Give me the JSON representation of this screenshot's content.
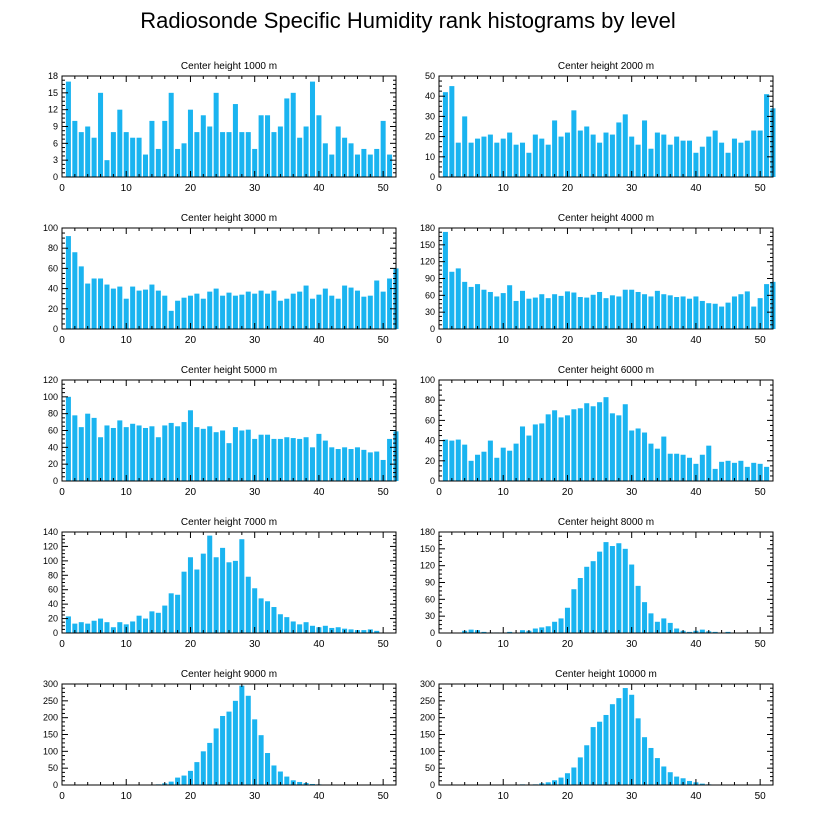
{
  "title": "Radiosonde Specific Humidity rank histograms by level",
  "colors": {
    "bar": "#1ab4f0",
    "axis": "#000000",
    "background": "#ffffff"
  },
  "chart_data": [
    {
      "type": "bar",
      "title": "Center height 1000 m",
      "ylim": [
        0,
        18
      ],
      "yticks": [
        0,
        3,
        6,
        9,
        12,
        15,
        18
      ],
      "xticks": [
        0,
        10,
        20,
        30,
        40,
        50
      ],
      "values": [
        17,
        10,
        8,
        9,
        7,
        15,
        3,
        8,
        12,
        8,
        7,
        7,
        4,
        10,
        5,
        10,
        15,
        5,
        6,
        12,
        8,
        11,
        9,
        15,
        8,
        8,
        13,
        8,
        8,
        5,
        11,
        11,
        8,
        9,
        14,
        15,
        7,
        9,
        17,
        11,
        6,
        4,
        9,
        7,
        6,
        4,
        5,
        4,
        5,
        10,
        4
      ]
    },
    {
      "type": "bar",
      "title": "Center height 2000 m",
      "ylim": [
        0,
        50
      ],
      "yticks": [
        0,
        10,
        20,
        30,
        40,
        50
      ],
      "xticks": [
        0,
        10,
        20,
        30,
        40,
        50
      ],
      "values": [
        42,
        45,
        17,
        30,
        17,
        19,
        20,
        21,
        17,
        19,
        22,
        16,
        17,
        12,
        21,
        19,
        16,
        28,
        20,
        22,
        33,
        23,
        25,
        21,
        17,
        22,
        21,
        27,
        31,
        20,
        16,
        28,
        14,
        22,
        21,
        16,
        20,
        18,
        18,
        12,
        15,
        20,
        23,
        17,
        12,
        19,
        17,
        18,
        23,
        23,
        41,
        34
      ]
    },
    {
      "type": "bar",
      "title": "Center height 3000 m",
      "ylim": [
        0,
        100
      ],
      "yticks": [
        0,
        20,
        40,
        60,
        80,
        100
      ],
      "xticks": [
        0,
        10,
        20,
        30,
        40,
        50
      ],
      "values": [
        92,
        76,
        62,
        45,
        50,
        50,
        44,
        40,
        42,
        30,
        42,
        38,
        39,
        44,
        38,
        33,
        18,
        28,
        31,
        33,
        35,
        30,
        37,
        40,
        33,
        36,
        33,
        34,
        37,
        35,
        38,
        35,
        38,
        28,
        30,
        35,
        37,
        43,
        30,
        34,
        40,
        33,
        30,
        43,
        41,
        38,
        32,
        33,
        48,
        37,
        50,
        60
      ]
    },
    {
      "type": "bar",
      "title": "Center height 4000 m",
      "ylim": [
        0,
        180
      ],
      "yticks": [
        0,
        30,
        60,
        90,
        120,
        150,
        180
      ],
      "xticks": [
        0,
        10,
        20,
        30,
        40,
        50
      ],
      "values": [
        173,
        102,
        108,
        84,
        75,
        80,
        70,
        66,
        58,
        64,
        78,
        50,
        68,
        54,
        56,
        62,
        55,
        62,
        59,
        67,
        65,
        57,
        56,
        61,
        66,
        55,
        60,
        58,
        70,
        70,
        66,
        62,
        58,
        68,
        62,
        60,
        57,
        58,
        54,
        58,
        50,
        46,
        45,
        40,
        47,
        58,
        62,
        67,
        40,
        55,
        80,
        84
      ]
    },
    {
      "type": "bar",
      "title": "Center height 5000 m",
      "ylim": [
        0,
        120
      ],
      "yticks": [
        0,
        20,
        40,
        60,
        80,
        100,
        120
      ],
      "xticks": [
        0,
        10,
        20,
        30,
        40,
        50
      ],
      "values": [
        100,
        78,
        64,
        80,
        75,
        52,
        66,
        63,
        72,
        64,
        68,
        66,
        63,
        65,
        52,
        66,
        69,
        65,
        70,
        84,
        64,
        62,
        65,
        58,
        60,
        45,
        64,
        60,
        61,
        50,
        55,
        55,
        50,
        50,
        52,
        51,
        50,
        52,
        40,
        56,
        48,
        40,
        38,
        40,
        38,
        40,
        37,
        34,
        35,
        25,
        50,
        59
      ]
    },
    {
      "type": "bar",
      "title": "Center height 6000 m",
      "ylim": [
        0,
        100
      ],
      "yticks": [
        0,
        20,
        40,
        60,
        80,
        100
      ],
      "xticks": [
        0,
        10,
        20,
        30,
        40,
        50
      ],
      "values": [
        41,
        40,
        41,
        36,
        20,
        26,
        29,
        40,
        23,
        33,
        30,
        37,
        54,
        45,
        56,
        57,
        66,
        70,
        63,
        65,
        71,
        72,
        77,
        74,
        78,
        83,
        67,
        65,
        76,
        50,
        52,
        48,
        37,
        32,
        44,
        27,
        27,
        26,
        23,
        17,
        26,
        35,
        12,
        19,
        20,
        18,
        20,
        14,
        18,
        17,
        14
      ]
    },
    {
      "type": "bar",
      "title": "Center height 7000 m",
      "ylim": [
        0,
        140
      ],
      "yticks": [
        0,
        20,
        40,
        60,
        80,
        100,
        120,
        140
      ],
      "xticks": [
        0,
        10,
        20,
        30,
        40,
        50
      ],
      "values": [
        23,
        13,
        15,
        13,
        17,
        20,
        15,
        8,
        15,
        12,
        16,
        24,
        20,
        30,
        28,
        38,
        55,
        53,
        85,
        105,
        88,
        110,
        135,
        105,
        118,
        98,
        100,
        130,
        78,
        62,
        48,
        44,
        36,
        26,
        22,
        16,
        12,
        15,
        10,
        8,
        10,
        7,
        8,
        6,
        5,
        4,
        4,
        5,
        3
      ]
    },
    {
      "type": "bar",
      "title": "Center height 8000 m",
      "ylim": [
        0,
        180
      ],
      "yticks": [
        0,
        30,
        60,
        90,
        120,
        150,
        180
      ],
      "xticks": [
        0,
        10,
        20,
        30,
        40,
        50
      ],
      "values": [
        0,
        0,
        0,
        4,
        6,
        5,
        2,
        1,
        1,
        0,
        2,
        0,
        5,
        4,
        8,
        10,
        12,
        20,
        26,
        45,
        78,
        98,
        118,
        128,
        145,
        162,
        155,
        160,
        150,
        122,
        84,
        55,
        35,
        20,
        26,
        18,
        8,
        4,
        2,
        4,
        6,
        3,
        2,
        0,
        2,
        0,
        0,
        1,
        0
      ]
    },
    {
      "type": "bar",
      "title": "Center height 9000 m",
      "ylim": [
        0,
        300
      ],
      "yticks": [
        0,
        50,
        100,
        150,
        200,
        250,
        300
      ],
      "xticks": [
        0,
        10,
        20,
        30,
        40,
        50
      ],
      "values": [
        0,
        0,
        0,
        0,
        0,
        0,
        0,
        0,
        0,
        0,
        0,
        0,
        0,
        0,
        2,
        5,
        10,
        22,
        28,
        42,
        68,
        100,
        125,
        168,
        205,
        218,
        250,
        295,
        265,
        195,
        148,
        95,
        58,
        40,
        25,
        14,
        9,
        6,
        3,
        2,
        1,
        1,
        0,
        0,
        0,
        0,
        0,
        0,
        0,
        0,
        0
      ]
    },
    {
      "type": "bar",
      "title": "Center height 10000 m",
      "ylim": [
        0,
        300
      ],
      "yticks": [
        0,
        50,
        100,
        150,
        200,
        250,
        300
      ],
      "xticks": [
        0,
        10,
        20,
        30,
        40,
        50
      ],
      "values": [
        0,
        0,
        0,
        0,
        0,
        0,
        0,
        0,
        0,
        0,
        0,
        0,
        2,
        0,
        2,
        5,
        8,
        14,
        22,
        35,
        52,
        82,
        118,
        172,
        188,
        208,
        240,
        258,
        288,
        268,
        198,
        142,
        110,
        80,
        55,
        38,
        25,
        20,
        12,
        8,
        4,
        2,
        1,
        0,
        0,
        0,
        0,
        0,
        0,
        0,
        0
      ]
    }
  ]
}
